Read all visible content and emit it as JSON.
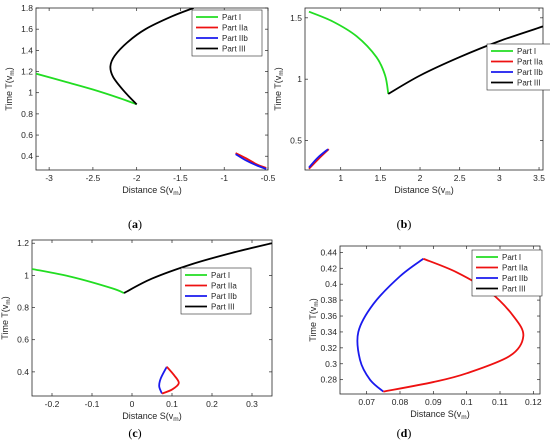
{
  "figure": {
    "legend_entries": [
      "Part I",
      "Part IIa",
      "Part IIb",
      "Part III"
    ],
    "series_colors": {
      "Part I": "#22dd22",
      "Part IIa": "#ee1111",
      "Part IIb": "#1a1aee",
      "Part III": "#000000"
    }
  },
  "chart_data": [
    {
      "id": "a",
      "caption": "(a)",
      "type": "line",
      "xlabel": "Distance S(v",
      "xlabel_sub": "m",
      "xlabel_end": ")",
      "ylabel": "Time T(v",
      "ylabel_sub": "m",
      "ylabel_end": ")",
      "xlim": [
        -3.15,
        -0.5
      ],
      "ylim": [
        0.27,
        1.8
      ],
      "xticks": [
        -3,
        -2.5,
        -2,
        -1.5,
        -1,
        -0.5
      ],
      "xtick_labels": [
        "-3",
        "-2.5",
        "-2",
        "-1.5",
        "-1",
        "-0.5"
      ],
      "yticks": [
        0.4,
        0.6,
        0.8,
        1,
        1.2,
        1.4,
        1.6,
        1.8
      ],
      "ytick_labels": [
        "0.4",
        "0.6",
        "0.8",
        "1",
        "1.2",
        "1.4",
        "1.6",
        "1.8"
      ],
      "legend_position": "top-right",
      "series": [
        {
          "name": "Part I",
          "x": [
            -3.15,
            -2.8,
            -2.5,
            -2.2,
            -2.0
          ],
          "y": [
            1.18,
            1.1,
            1.03,
            0.95,
            0.89
          ]
        },
        {
          "name": "Part III",
          "x": [
            -2.0,
            -2.15,
            -2.27,
            -2.3,
            -2.25,
            -2.1,
            -1.9,
            -1.6,
            -1.35
          ],
          "y": [
            0.89,
            1.02,
            1.15,
            1.25,
            1.35,
            1.48,
            1.6,
            1.72,
            1.8
          ]
        },
        {
          "name": "Part IIa",
          "x": [
            -0.87,
            -0.75,
            -0.62,
            -0.52
          ],
          "y": [
            0.43,
            0.38,
            0.32,
            0.29
          ]
        },
        {
          "name": "Part IIb",
          "x": [
            -0.87,
            -0.75,
            -0.62,
            -0.52
          ],
          "y": [
            0.42,
            0.36,
            0.31,
            0.28
          ]
        }
      ]
    },
    {
      "id": "b",
      "caption": "(b)",
      "type": "line",
      "xlabel": "Distance S(v",
      "xlabel_sub": "m",
      "xlabel_end": ")",
      "ylabel": "Time T(v",
      "ylabel_sub": "m",
      "ylabel_end": ")",
      "xlim": [
        0.55,
        3.55
      ],
      "ylim": [
        0.26,
        1.58
      ],
      "xticks": [
        1,
        1.5,
        2,
        2.5,
        3,
        3.5
      ],
      "xtick_labels": [
        "1",
        "1.5",
        "2",
        "2.5",
        "3",
        "3.5"
      ],
      "yticks": [
        0.5,
        1,
        1.5
      ],
      "ytick_labels": [
        "0.5",
        "1",
        "1.5"
      ],
      "legend_position": "top-right",
      "series": [
        {
          "name": "Part I",
          "x": [
            0.6,
            0.9,
            1.2,
            1.45,
            1.56,
            1.6
          ],
          "y": [
            1.55,
            1.47,
            1.35,
            1.18,
            1.03,
            0.88
          ]
        },
        {
          "name": "Part III",
          "x": [
            1.6,
            2.0,
            2.5,
            3.0,
            3.55
          ],
          "y": [
            0.88,
            1.03,
            1.18,
            1.31,
            1.43
          ]
        },
        {
          "name": "Part IIa",
          "x": [
            0.6,
            0.72,
            0.85
          ],
          "y": [
            0.27,
            0.35,
            0.43
          ]
        },
        {
          "name": "Part IIb",
          "x": [
            0.6,
            0.71,
            0.84
          ],
          "y": [
            0.28,
            0.36,
            0.43
          ]
        }
      ]
    },
    {
      "id": "c",
      "caption": "(c)",
      "type": "line",
      "xlabel": "Distance S(v",
      "xlabel_sub": "m",
      "xlabel_end": ")",
      "ylabel": "Time T(v",
      "ylabel_sub": "m",
      "ylabel_end": ")",
      "xlim": [
        -0.25,
        0.35
      ],
      "ylim": [
        0.25,
        1.22
      ],
      "xticks": [
        -0.2,
        -0.1,
        0,
        0.1,
        0.2,
        0.3
      ],
      "xtick_labels": [
        "-0.2",
        "-0.1",
        "0",
        "0.1",
        "0.2",
        "0.3"
      ],
      "yticks": [
        0.4,
        0.6,
        0.8,
        1,
        1.2
      ],
      "ytick_labels": [
        "0.4",
        "0.6",
        "0.8",
        "1",
        "1.2"
      ],
      "legend_position": "top-right",
      "series": [
        {
          "name": "Part I",
          "x": [
            -0.25,
            -0.15,
            -0.05,
            -0.02
          ],
          "y": [
            1.04,
            0.99,
            0.92,
            0.89
          ]
        },
        {
          "name": "Part III",
          "x": [
            -0.02,
            0.05,
            0.15,
            0.25,
            0.35
          ],
          "y": [
            0.89,
            0.98,
            1.07,
            1.14,
            1.2
          ]
        },
        {
          "name": "Part IIb",
          "x": [
            0.087,
            0.072,
            0.068,
            0.075
          ],
          "y": [
            0.432,
            0.36,
            0.31,
            0.265
          ]
        },
        {
          "name": "Part IIa",
          "x": [
            0.087,
            0.105,
            0.117,
            0.1,
            0.075
          ],
          "y": [
            0.432,
            0.38,
            0.33,
            0.29,
            0.265
          ]
        }
      ]
    },
    {
      "id": "d",
      "caption": "(d)",
      "type": "line",
      "xlabel": "Distance S(v",
      "xlabel_sub": "m",
      "xlabel_end": ")",
      "ylabel": "Time T(v",
      "ylabel_sub": "m",
      "ylabel_end": ")",
      "xlim": [
        0.062,
        0.122
      ],
      "ylim": [
        0.262,
        0.448
      ],
      "xticks": [
        0.07,
        0.08,
        0.09,
        0.1,
        0.11,
        0.12
      ],
      "xtick_labels": [
        "0.07",
        "0.08",
        "0.09",
        "0.1",
        "0.11",
        "0.12"
      ],
      "yticks": [
        0.28,
        0.3,
        0.32,
        0.34,
        0.36,
        0.38,
        0.4,
        0.42,
        0.44
      ],
      "ytick_labels": [
        "0.28",
        "0.3",
        "0.32",
        "0.34",
        "0.36",
        "0.38",
        "0.4",
        "0.42",
        "0.44"
      ],
      "legend_position": "top-right",
      "series": [
        {
          "name": "Part IIb",
          "x": [
            0.087,
            0.08,
            0.072,
            0.0675,
            0.068,
            0.071,
            0.075
          ],
          "y": [
            0.432,
            0.41,
            0.375,
            0.34,
            0.305,
            0.28,
            0.265
          ]
        },
        {
          "name": "Part IIa",
          "x": [
            0.087,
            0.097,
            0.107,
            0.114,
            0.117,
            0.113,
            0.1,
            0.09,
            0.075
          ],
          "y": [
            0.432,
            0.415,
            0.39,
            0.36,
            0.335,
            0.31,
            0.288,
            0.277,
            0.265
          ]
        }
      ]
    }
  ]
}
